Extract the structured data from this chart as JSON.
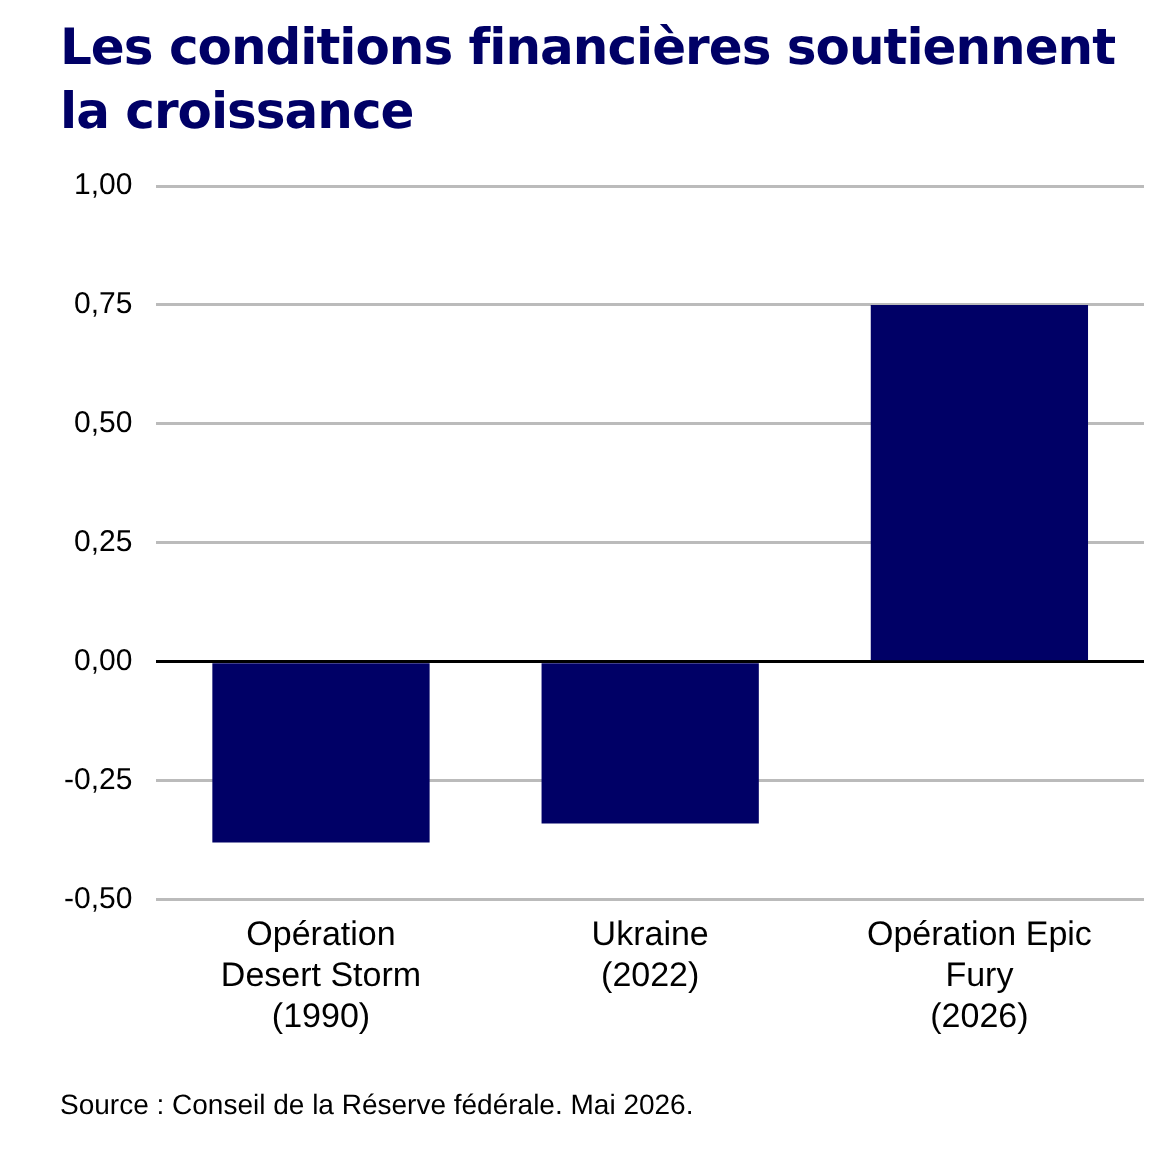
{
  "chart_data": {
    "type": "bar",
    "title": "Les conditions financières soutiennent la croissance",
    "categories": [
      "Opération\nDesert Storm\n(1990)",
      "Ukraine\n(2022)",
      "Opération Epic\nFury\n(2026)"
    ],
    "values": [
      -0.38,
      -0.34,
      0.75
    ],
    "color": "#000066",
    "ylim": [
      -0.5,
      1.0
    ],
    "yticks": [
      {
        "value": -0.5,
        "label": "-0,50"
      },
      {
        "value": -0.25,
        "label": "-0,25"
      },
      {
        "value": 0,
        "label": "0,00"
      },
      {
        "value": 0.25,
        "label": "0,25"
      },
      {
        "value": 0.5,
        "label": "0,50"
      },
      {
        "value": 0.75,
        "label": "0,75"
      },
      {
        "value": 1.0,
        "label": "1,00"
      }
    ],
    "grid": "y",
    "legend": false,
    "annotations": [
      "Source : Conseil de la Réserve fédérale. Mai 2026."
    ]
  }
}
